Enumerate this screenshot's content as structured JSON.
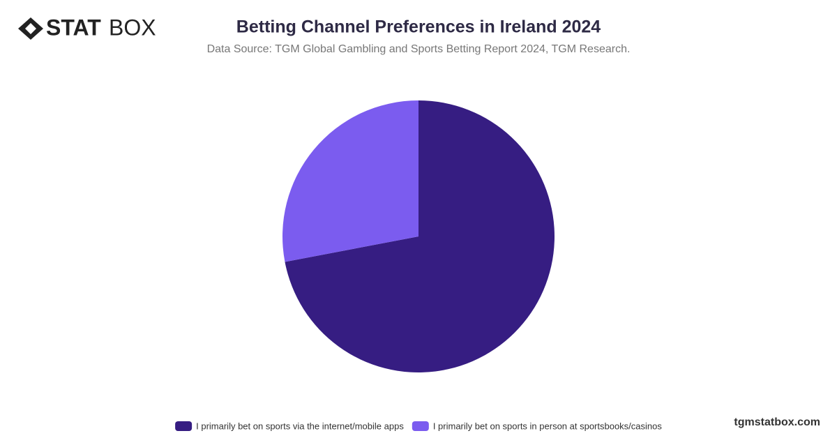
{
  "brand": {
    "bold": "STAT",
    "light": "BOX",
    "url": "tgmstatbox.com"
  },
  "chart_data": {
    "type": "pie",
    "title": "Betting Channel Preferences in Ireland 2024",
    "subtitle": "Data Source: TGM Global Gambling and Sports Betting Report 2024, TGM Research.",
    "categories": [
      "I primarily bet on sports via the internet/mobile apps",
      "I primarily bet on sports in person at sportsbooks/casinos"
    ],
    "values": [
      72,
      28
    ],
    "colors": [
      "#361d82",
      "#7b5cef"
    ],
    "legend": "bottom"
  }
}
